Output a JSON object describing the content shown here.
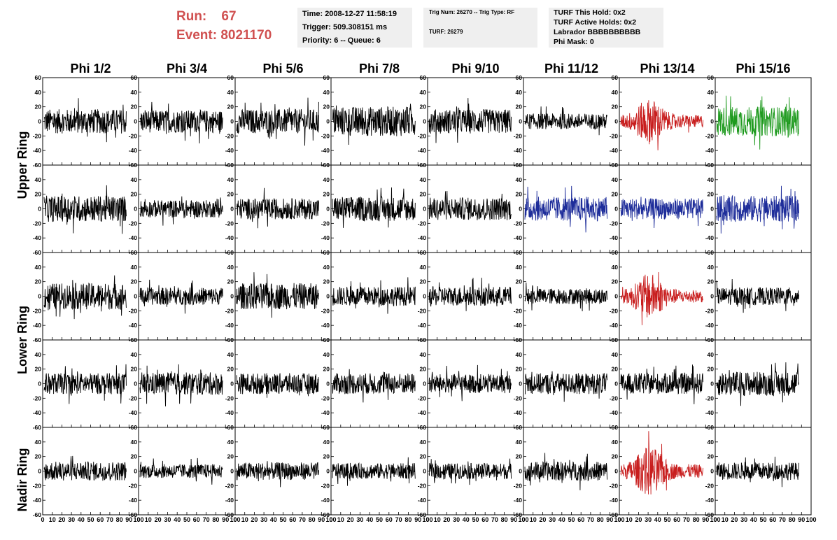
{
  "header": {
    "run_label": "Run:",
    "run_value": "67",
    "event_label": "Event:",
    "event_value": "8021170"
  },
  "info_boxes": {
    "time": "Time: 2008-12-27 11:58:19",
    "trigger": "Trigger: 509.308151 ms",
    "priority": "Priority: 6 -- Queue: 6",
    "trig_num": "Trig Num: 26270 -- Trig Type: RF",
    "turf": "TURF: 26279",
    "turf_this_hold": "TURF This Hold: 0x2",
    "turf_active_holds": "TURF Active Holds: 0x2",
    "labrador": "Labrador BBBBBBBBBB",
    "phi_mask": "Phi Mask: 0"
  },
  "chart_data": {
    "type": "line",
    "columns": [
      "Phi 1/2",
      "Phi 3/4",
      "Phi 5/6",
      "Phi 7/8",
      "Phi 9/10",
      "Phi 11/12",
      "Phi 13/14",
      "Phi 15/16"
    ],
    "ring_labels": [
      "Upper Ring",
      "Lower Ring",
      "Nadir Ring"
    ],
    "rows": 5,
    "xlim": [
      0,
      100
    ],
    "ylim": [
      -60,
      60
    ],
    "x_ticks": [
      "0",
      "10",
      "20",
      "30",
      "40",
      "50",
      "60",
      "70",
      "80",
      "90",
      "100"
    ],
    "y_ticks": [
      "60",
      "40",
      "20",
      "0",
      "-20",
      "-40",
      "-60"
    ],
    "samples_per_trace": 260,
    "colors": {
      "normal": "#000000",
      "red": "#c81e1e",
      "green": "#1e9a1e",
      "blue": "#1e2d9a",
      "title": "#d05050"
    },
    "panels": [
      [
        {
          "color": "normal",
          "amp": 14,
          "burst": 0
        },
        {
          "color": "normal",
          "amp": 13,
          "burst": 0
        },
        {
          "color": "normal",
          "amp": 14,
          "burst": 0
        },
        {
          "color": "normal",
          "amp": 17,
          "burst": 0
        },
        {
          "color": "normal",
          "amp": 14,
          "burst": 0
        },
        {
          "color": "normal",
          "amp": 9,
          "burst": 0
        },
        {
          "color": "red",
          "amp": 12,
          "burst": 1
        },
        {
          "color": "green",
          "amp": 17,
          "burst": 0
        }
      ],
      [
        {
          "color": "normal",
          "amp": 15,
          "burst": 0
        },
        {
          "color": "normal",
          "amp": 10,
          "burst": 0
        },
        {
          "color": "normal",
          "amp": 12,
          "burst": 0
        },
        {
          "color": "normal",
          "amp": 14,
          "burst": 0
        },
        {
          "color": "normal",
          "amp": 13,
          "burst": 0
        },
        {
          "color": "blue",
          "amp": 14,
          "burst": 0
        },
        {
          "color": "blue",
          "amp": 12,
          "burst": 0
        },
        {
          "color": "blue",
          "amp": 15,
          "burst": 0
        }
      ],
      [
        {
          "color": "normal",
          "amp": 15,
          "burst": 0
        },
        {
          "color": "normal",
          "amp": 10,
          "burst": 0
        },
        {
          "color": "normal",
          "amp": 15,
          "burst": 0
        },
        {
          "color": "normal",
          "amp": 11,
          "burst": 0
        },
        {
          "color": "normal",
          "amp": 11,
          "burst": 0
        },
        {
          "color": "normal",
          "amp": 9,
          "burst": 0
        },
        {
          "color": "red",
          "amp": 12,
          "burst": 1
        },
        {
          "color": "normal",
          "amp": 10,
          "burst": 0
        }
      ],
      [
        {
          "color": "normal",
          "amp": 12,
          "burst": 0
        },
        {
          "color": "normal",
          "amp": 13,
          "burst": 0
        },
        {
          "color": "normal",
          "amp": 12,
          "burst": 0
        },
        {
          "color": "normal",
          "amp": 12,
          "burst": 0
        },
        {
          "color": "normal",
          "amp": 11,
          "burst": 0
        },
        {
          "color": "normal",
          "amp": 12,
          "burst": 0
        },
        {
          "color": "normal",
          "amp": 12,
          "burst": 0
        },
        {
          "color": "normal",
          "amp": 14,
          "burst": 0
        }
      ],
      [
        {
          "color": "normal",
          "amp": 11,
          "burst": 0
        },
        {
          "color": "normal",
          "amp": 8,
          "burst": 0
        },
        {
          "color": "normal",
          "amp": 10,
          "burst": 0
        },
        {
          "color": "normal",
          "amp": 9,
          "burst": 0
        },
        {
          "color": "normal",
          "amp": 9,
          "burst": 0
        },
        {
          "color": "normal",
          "amp": 11,
          "burst": 0
        },
        {
          "color": "red",
          "amp": 13,
          "burst": 1
        },
        {
          "color": "normal",
          "amp": 10,
          "burst": 0
        }
      ]
    ]
  }
}
